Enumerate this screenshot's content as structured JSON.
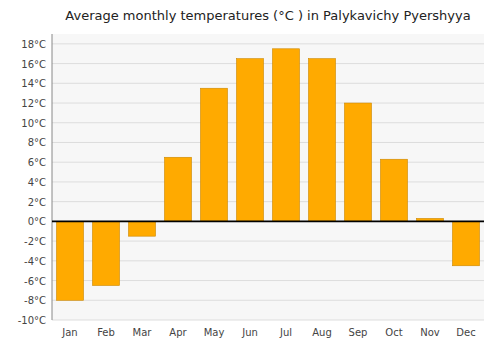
{
  "chart_data": {
    "type": "bar",
    "title": "Average monthly temperatures (°C ) in Palykavichy Pyershyya",
    "categories": [
      "Jan",
      "Feb",
      "Mar",
      "Apr",
      "May",
      "Jun",
      "Jul",
      "Aug",
      "Sep",
      "Oct",
      "Nov",
      "Dec"
    ],
    "values": [
      -8,
      -6.5,
      -1.5,
      6.5,
      13.5,
      16.5,
      17.5,
      16.5,
      12,
      6.3,
      0.3,
      -4.5
    ],
    "color": "#FFAA00",
    "ylim": [
      -10,
      19
    ],
    "yticks": [
      {
        "value": -10,
        "label": "-10°C"
      },
      {
        "value": -8,
        "label": "-8°C"
      },
      {
        "value": -6,
        "label": "-6°C"
      },
      {
        "value": -4,
        "label": "-4°C"
      },
      {
        "value": -2,
        "label": "-2°C"
      },
      {
        "value": 0,
        "label": "0°C"
      },
      {
        "value": 2,
        "label": "2°C"
      },
      {
        "value": 4,
        "label": "4°C"
      },
      {
        "value": 6,
        "label": "6°C"
      },
      {
        "value": 8,
        "label": "8°C"
      },
      {
        "value": 10,
        "label": "10°C"
      },
      {
        "value": 12,
        "label": "12°C"
      },
      {
        "value": 14,
        "label": "14°C"
      },
      {
        "value": 16,
        "label": "16°C"
      },
      {
        "value": 18,
        "label": "18°C"
      }
    ],
    "grid": true
  }
}
